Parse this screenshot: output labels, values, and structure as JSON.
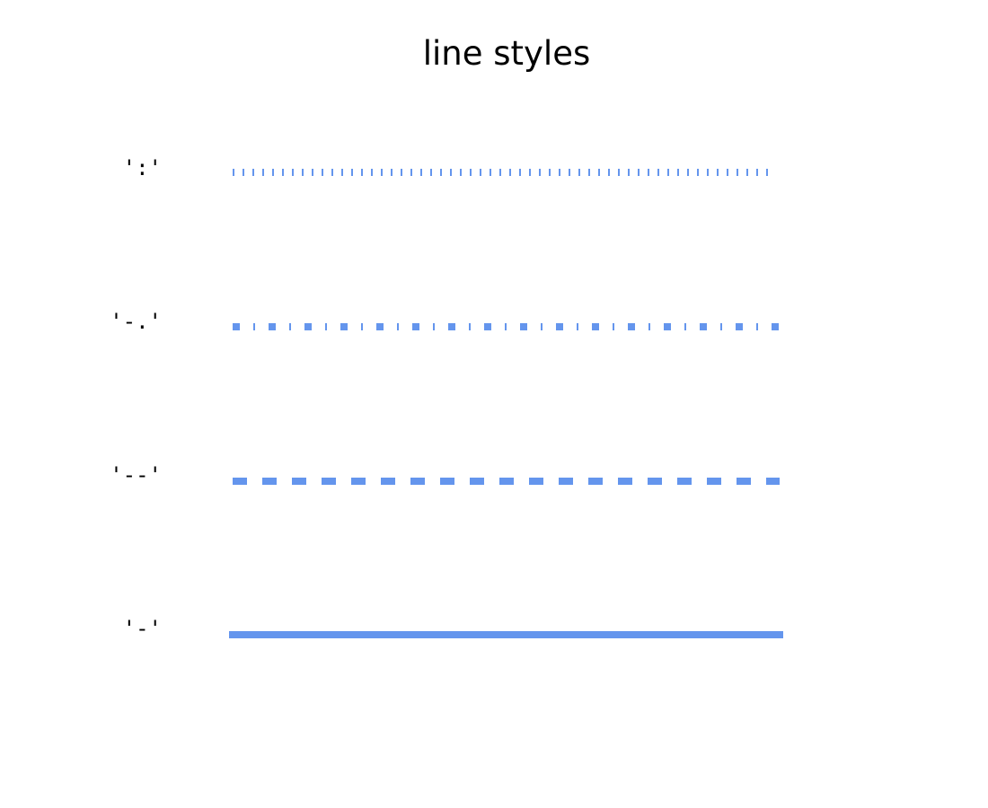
{
  "title": "line styles",
  "line_color": "#6495ed",
  "label_color": "#000000",
  "rows": [
    {
      "label": "':'",
      "style": "dotted"
    },
    {
      "label": "'-.'",
      "style": "dashdot"
    },
    {
      "label": "'--'",
      "style": "dashed"
    },
    {
      "label": "'-'",
      "style": "solid"
    }
  ]
}
